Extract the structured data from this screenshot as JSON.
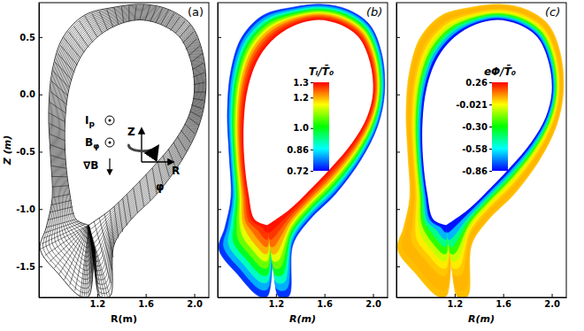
{
  "chart_data": {
    "type": "mesh_contour",
    "x_label": "R(m)",
    "y_label": "Z (m)",
    "xlim": [
      0.72,
      2.12
    ],
    "ylim": [
      -1.77,
      0.8
    ],
    "xticks": [
      1.2,
      1.6,
      {
        "value": 2,
        "label": "2.0"
      }
    ],
    "yticks": [
      0.5,
      {
        "value": 0,
        "label": "0.0"
      },
      -0.5,
      {
        "value": -1,
        "label": "-1.0"
      },
      -1.5
    ],
    "inner_boundary": {
      "R": [
        2.0,
        1.975,
        1.88,
        1.725,
        1.55,
        1.375,
        1.2,
        1.06,
        0.97,
        0.935,
        0.94,
        0.975,
        1.025,
        1.13,
        1.13,
        1.13,
        1.13,
        1.13,
        1.13,
        1.13,
        1.305,
        1.445,
        1.655,
        1.83,
        1.95
      ],
      "Z": [
        0.02,
        0.28,
        0.5,
        0.61,
        0.65,
        0.61,
        0.5,
        0.32,
        0.06,
        -0.24,
        -0.57,
        -0.87,
        -1.09,
        -1.14,
        -1.14,
        -1.14,
        -1.14,
        -1.14,
        -1.14,
        -1.14,
        -1.01,
        -0.87,
        -0.64,
        -0.42,
        -0.2
      ]
    },
    "outer_boundary": {
      "R": [
        2.095,
        2.07,
        1.97,
        1.79,
        1.585,
        1.34,
        1.095,
        0.92,
        0.83,
        0.8,
        0.815,
        0.83,
        0.78,
        0.73,
        0.885,
        1.06,
        1.13,
        1.18,
        1.22,
        1.305,
        1.34,
        1.48,
        1.69,
        1.9,
        2.04
      ],
      "Z": [
        0.02,
        0.36,
        0.61,
        0.74,
        0.785,
        0.76,
        0.69,
        0.5,
        0.21,
        -0.16,
        -0.53,
        -0.9,
        -1.16,
        -1.35,
        -1.57,
        -1.76,
        -1.76,
        -1.35,
        -1.76,
        -1.76,
        -1.31,
        -1.09,
        -0.87,
        -0.57,
        -0.27
      ]
    },
    "panels": [
      {
        "label": "(a)",
        "type": "mesh",
        "annotations": [
          {
            "text": "I",
            "sub": "p"
          },
          {
            "text": "B",
            "sub": "φ"
          },
          {
            "text": "∇B"
          },
          {
            "text": "Z"
          },
          {
            "text": "R"
          },
          {
            "text": "φ"
          }
        ]
      },
      {
        "label": "(b)",
        "type": "heatmap",
        "tick_labels": "x",
        "colorbar_title": "Tᵢ/T̄₀",
        "colorbar_range": [
          0.72,
          1.3
        ],
        "colorbar_ticks": [
          1.3,
          1.2,
          {
            "value": 1,
            "label": "1.0"
          },
          0.86,
          0.72
        ],
        "values": [
          1.29,
          1.27,
          1.24,
          1.2,
          1.14,
          1.07,
          0.99,
          0.9,
          0.82,
          0.75
        ]
      },
      {
        "label": "(c)",
        "type": "heatmap",
        "tick_labels": "x",
        "colorbar_title": "eΦ/T̄₀",
        "colorbar_range": [
          -0.86,
          0.26
        ],
        "colorbar_ticks": [
          0.26,
          -0.021,
          {
            "value": -0.3,
            "label": "-0.30"
          },
          -0.58,
          -0.86
        ],
        "values": [
          -0.84,
          -0.66,
          -0.45,
          -0.25,
          -0.08,
          0.0,
          0.04,
          0.06,
          0.06,
          0.05
        ]
      }
    ]
  }
}
